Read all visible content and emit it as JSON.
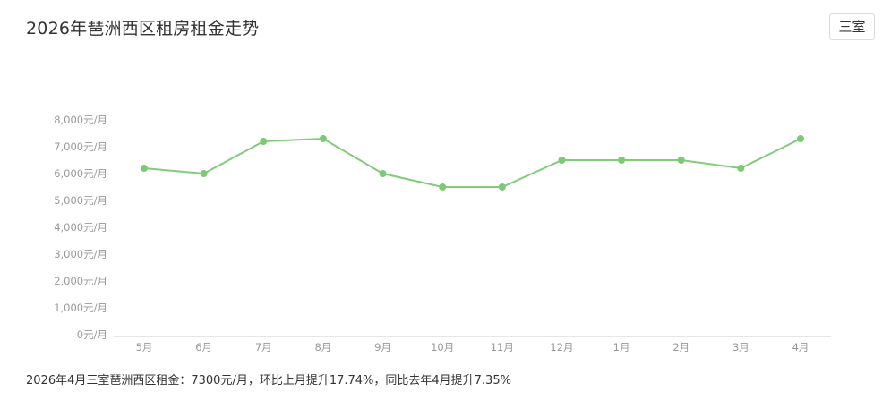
{
  "header": {
    "title": "2026年琶洲西区租房租金走势",
    "room_button_label": "三室"
  },
  "summary": {
    "text": "2026年4月三室琶洲西区租金：7300元/月，环比上月提升17.74%，同比去年4月提升7.35%"
  },
  "colors": {
    "line": "#82ca7c",
    "point": "#7cc976",
    "axis": "#cccccc",
    "tick_text": "#999999"
  },
  "chart_data": {
    "type": "line",
    "title": "",
    "xlabel": "",
    "ylabel": "",
    "categories": [
      "5月",
      "6月",
      "7月",
      "8月",
      "9月",
      "10月",
      "11月",
      "12月",
      "1月",
      "2月",
      "3月",
      "4月"
    ],
    "series": [
      {
        "values": [
          6200,
          6000,
          7200,
          7300,
          6000,
          5500,
          5500,
          6500,
          6500,
          6500,
          6200,
          7300
        ]
      }
    ],
    "ylim": [
      0,
      8000
    ],
    "yticks": [
      0,
      1000,
      2000,
      3000,
      4000,
      5000,
      6000,
      7000,
      8000
    ],
    "ytick_labels": [
      "0元/月",
      "1,000元/月",
      "2,000元/月",
      "3,000元/月",
      "4,000元/月",
      "5,000元/月",
      "6,000元/月",
      "7,000元/月",
      "8,000元/月"
    ],
    "grid": false,
    "legend": "none"
  }
}
